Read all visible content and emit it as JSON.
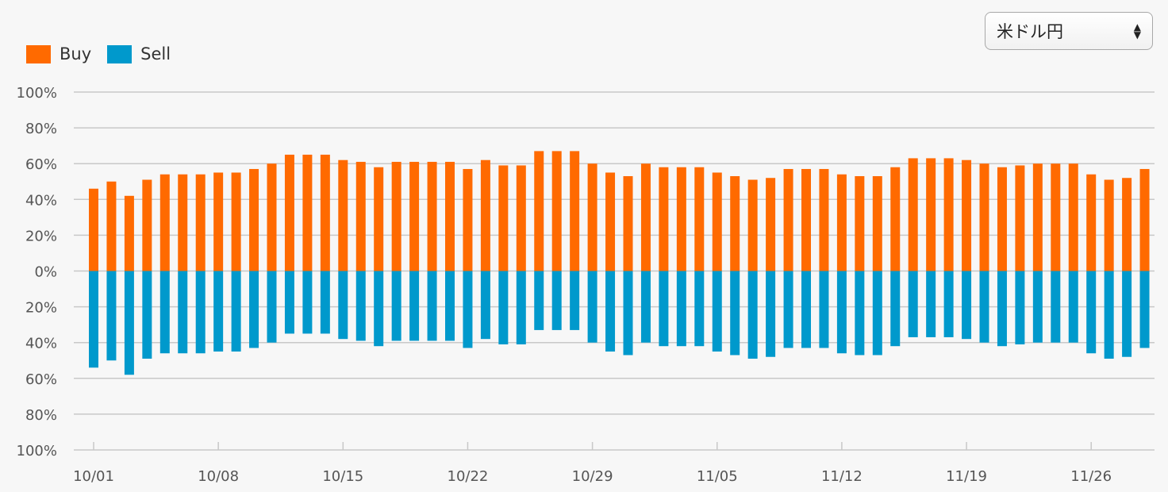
{
  "selector": {
    "value": "米ドル円",
    "icon": "updown-arrows-icon"
  },
  "colors": {
    "buy": "#ff6a00",
    "sell": "#0099cc",
    "grid": "#c8c8c8",
    "text": "#555555"
  },
  "chart_data": {
    "type": "bar",
    "stacked": "diverging",
    "legend": [
      "Buy",
      "Sell"
    ],
    "legend_position": "top-left",
    "grid": true,
    "ylim": [
      -100,
      100
    ],
    "y_ticks": [
      {
        "value": 100,
        "label": "100%"
      },
      {
        "value": 80,
        "label": "80%"
      },
      {
        "value": 60,
        "label": "60%"
      },
      {
        "value": 40,
        "label": "40%"
      },
      {
        "value": 20,
        "label": "20%"
      },
      {
        "value": 0,
        "label": "0%"
      },
      {
        "value": -20,
        "label": "20%"
      },
      {
        "value": -40,
        "label": "40%"
      },
      {
        "value": -60,
        "label": "60%"
      },
      {
        "value": -80,
        "label": "80%"
      },
      {
        "value": -100,
        "label": "100%"
      }
    ],
    "x_ticks": [
      "10/01",
      "10/08",
      "10/15",
      "10/22",
      "10/29",
      "11/05",
      "11/12",
      "11/19",
      "11/26"
    ],
    "x_tick_positions": [
      0,
      7,
      14,
      21,
      28,
      35,
      42,
      49,
      56
    ],
    "series": [
      {
        "name": "Buy",
        "values": [
          46,
          50,
          42,
          51,
          54,
          54,
          54,
          55,
          55,
          57,
          60,
          65,
          65,
          65,
          62,
          61,
          58,
          61,
          61,
          61,
          61,
          57,
          62,
          59,
          59,
          67,
          67,
          67,
          60,
          55,
          53,
          60,
          58,
          58,
          58,
          55,
          53,
          51,
          52,
          57,
          57,
          57,
          54,
          53,
          53,
          58,
          63,
          63,
          63,
          62,
          60,
          58,
          59,
          60,
          60,
          60,
          54,
          51,
          52,
          57
        ]
      },
      {
        "name": "Sell",
        "values": [
          54,
          50,
          58,
          49,
          46,
          46,
          46,
          45,
          45,
          43,
          40,
          35,
          35,
          35,
          38,
          39,
          42,
          39,
          39,
          39,
          39,
          43,
          38,
          41,
          41,
          33,
          33,
          33,
          40,
          45,
          47,
          40,
          42,
          42,
          42,
          45,
          47,
          49,
          48,
          43,
          43,
          43,
          46,
          47,
          47,
          42,
          37,
          37,
          37,
          38,
          40,
          42,
          41,
          40,
          40,
          40,
          46,
          49,
          48,
          43
        ]
      }
    ]
  }
}
